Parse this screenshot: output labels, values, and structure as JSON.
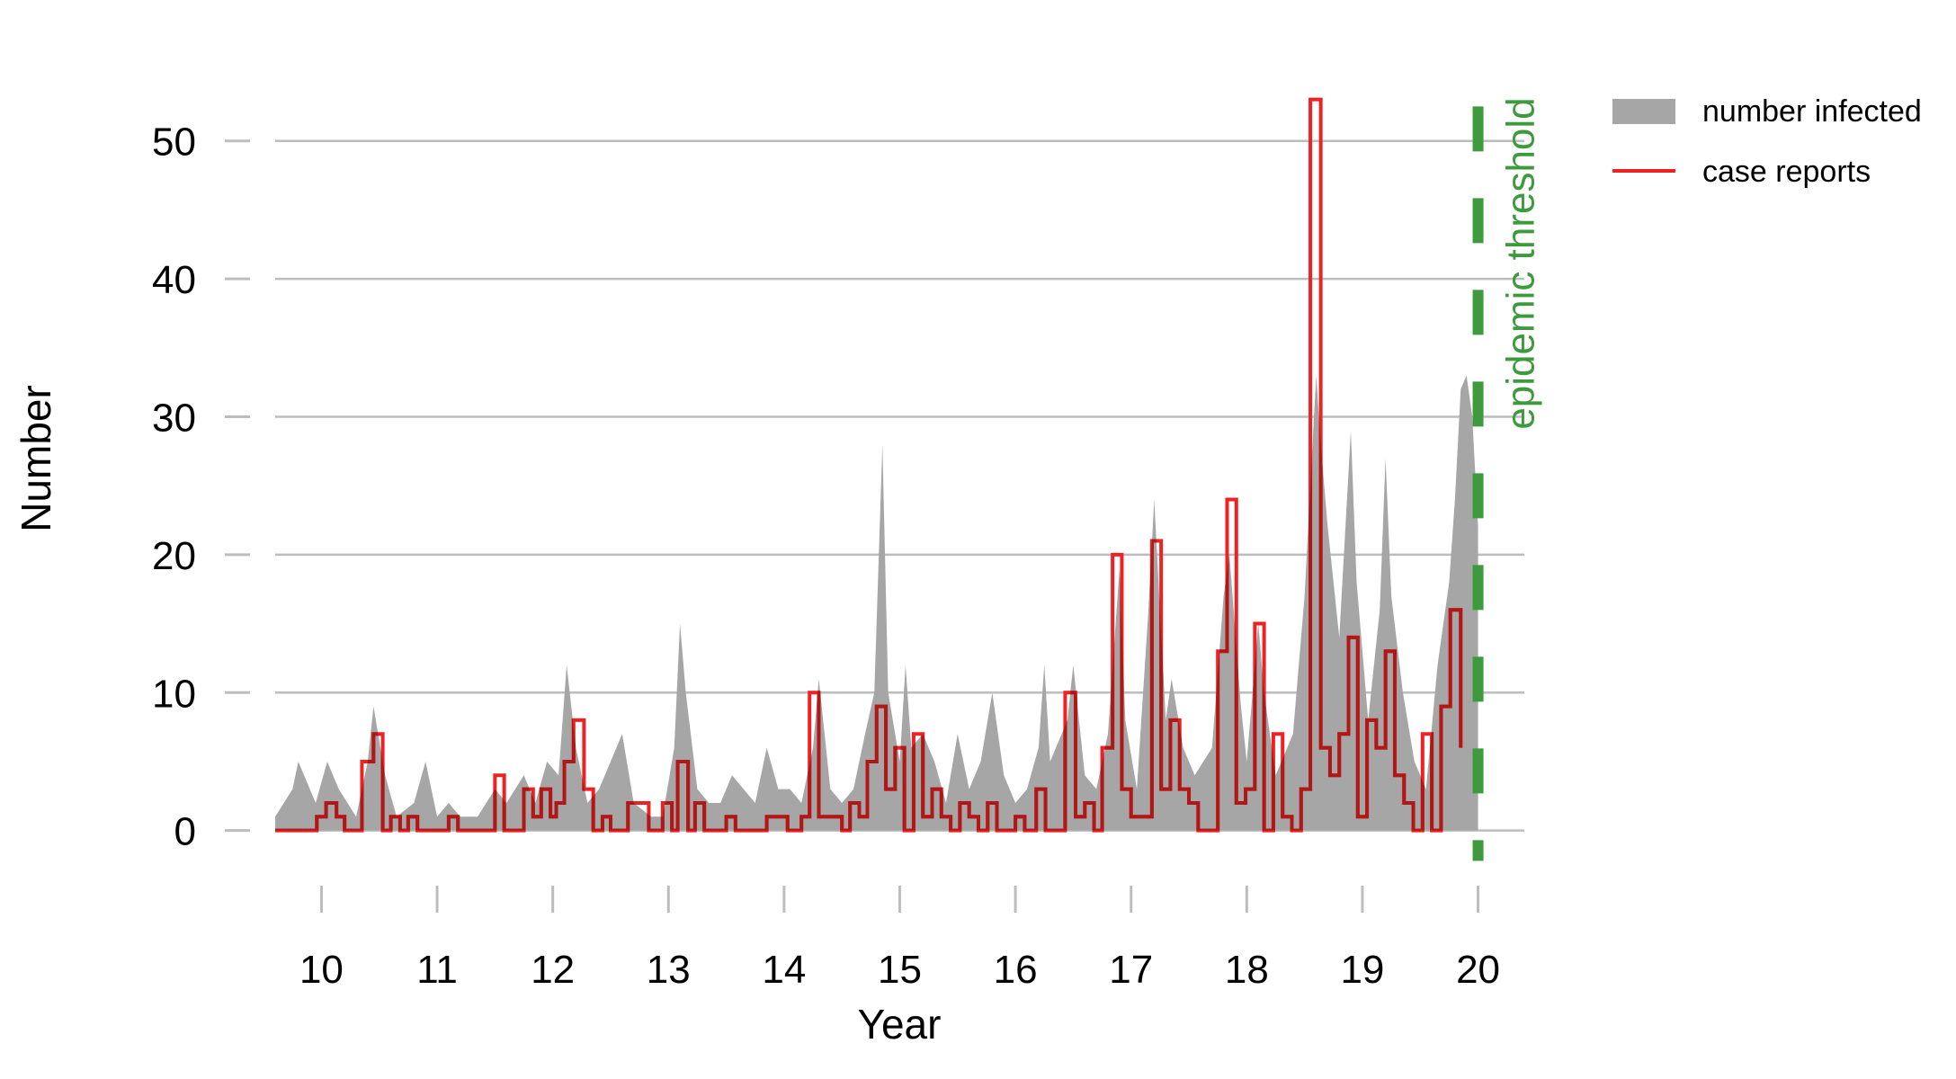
{
  "chart_data": {
    "type": "area",
    "title": "",
    "xlabel": "Year",
    "ylabel": "Number",
    "xlim": [
      9.6,
      20.4
    ],
    "ylim": [
      -4,
      55
    ],
    "x_ticks": [
      10,
      11,
      12,
      13,
      14,
      15,
      16,
      17,
      18,
      19,
      20
    ],
    "x_tick_labels": [
      "10",
      "11",
      "12",
      "13",
      "14",
      "15",
      "16",
      "17",
      "18",
      "19",
      "20"
    ],
    "y_ticks": [
      0,
      10,
      20,
      30,
      40,
      50
    ],
    "y_tick_labels": [
      "0",
      "10",
      "20",
      "30",
      "40",
      "50"
    ],
    "grid": "horizontal",
    "legend_position": "top-right",
    "colors": {
      "infected": "#a6a6a6",
      "reports": "#ee2222",
      "reports_overlap": "#b01818",
      "threshold": "#3d9a3d",
      "grid": "#bdbdbd"
    },
    "legend": [
      {
        "key": "infected",
        "label": "number infected"
      },
      {
        "key": "reports",
        "label": "case reports"
      }
    ],
    "threshold": {
      "x": 20,
      "label": "epidemic threshold"
    },
    "series": [
      {
        "name": "number infected",
        "type": "area",
        "points": [
          [
            9.6,
            1
          ],
          [
            9.75,
            3
          ],
          [
            9.8,
            5
          ],
          [
            9.95,
            2
          ],
          [
            10.05,
            5
          ],
          [
            10.15,
            3
          ],
          [
            10.3,
            1
          ],
          [
            10.4,
            5
          ],
          [
            10.45,
            9
          ],
          [
            10.55,
            4
          ],
          [
            10.65,
            1
          ],
          [
            10.8,
            2
          ],
          [
            10.9,
            5
          ],
          [
            11.0,
            1
          ],
          [
            11.1,
            2
          ],
          [
            11.2,
            1
          ],
          [
            11.35,
            1
          ],
          [
            11.5,
            3
          ],
          [
            11.6,
            2
          ],
          [
            11.75,
            4
          ],
          [
            11.85,
            2
          ],
          [
            11.95,
            5
          ],
          [
            12.05,
            4
          ],
          [
            12.12,
            12
          ],
          [
            12.2,
            6
          ],
          [
            12.3,
            2
          ],
          [
            12.4,
            3
          ],
          [
            12.5,
            5
          ],
          [
            12.6,
            7
          ],
          [
            12.7,
            2
          ],
          [
            12.85,
            1
          ],
          [
            12.95,
            1
          ],
          [
            13.05,
            6
          ],
          [
            13.1,
            15
          ],
          [
            13.15,
            10
          ],
          [
            13.25,
            3
          ],
          [
            13.35,
            2
          ],
          [
            13.45,
            2
          ],
          [
            13.55,
            4
          ],
          [
            13.65,
            3
          ],
          [
            13.75,
            2
          ],
          [
            13.85,
            6
          ],
          [
            13.95,
            3
          ],
          [
            14.05,
            3
          ],
          [
            14.15,
            2
          ],
          [
            14.25,
            6
          ],
          [
            14.3,
            11
          ],
          [
            14.4,
            3
          ],
          [
            14.5,
            2
          ],
          [
            14.6,
            3
          ],
          [
            14.7,
            7
          ],
          [
            14.78,
            10
          ],
          [
            14.85,
            28
          ],
          [
            14.9,
            10
          ],
          [
            15.0,
            5
          ],
          [
            15.05,
            12
          ],
          [
            15.1,
            6
          ],
          [
            15.2,
            7
          ],
          [
            15.3,
            5
          ],
          [
            15.4,
            2
          ],
          [
            15.5,
            7
          ],
          [
            15.6,
            3
          ],
          [
            15.7,
            5
          ],
          [
            15.8,
            10
          ],
          [
            15.9,
            4
          ],
          [
            16.0,
            2
          ],
          [
            16.1,
            3
          ],
          [
            16.2,
            6
          ],
          [
            16.25,
            12
          ],
          [
            16.3,
            5
          ],
          [
            16.45,
            8
          ],
          [
            16.5,
            12
          ],
          [
            16.6,
            4
          ],
          [
            16.7,
            3
          ],
          [
            16.8,
            7
          ],
          [
            16.9,
            19
          ],
          [
            16.95,
            8
          ],
          [
            17.05,
            3
          ],
          [
            17.15,
            16
          ],
          [
            17.2,
            24
          ],
          [
            17.3,
            8
          ],
          [
            17.35,
            11
          ],
          [
            17.45,
            6
          ],
          [
            17.55,
            4
          ],
          [
            17.7,
            6
          ],
          [
            17.8,
            17
          ],
          [
            17.85,
            20
          ],
          [
            17.95,
            9
          ],
          [
            18.0,
            5
          ],
          [
            18.1,
            15
          ],
          [
            18.15,
            10
          ],
          [
            18.25,
            4
          ],
          [
            18.4,
            7
          ],
          [
            18.5,
            17
          ],
          [
            18.55,
            25
          ],
          [
            18.6,
            33
          ],
          [
            18.65,
            27
          ],
          [
            18.7,
            22
          ],
          [
            18.8,
            14
          ],
          [
            18.9,
            29
          ],
          [
            18.95,
            18
          ],
          [
            19.05,
            8
          ],
          [
            19.15,
            16
          ],
          [
            19.2,
            27
          ],
          [
            19.25,
            17
          ],
          [
            19.35,
            10
          ],
          [
            19.45,
            5
          ],
          [
            19.55,
            3
          ],
          [
            19.65,
            12
          ],
          [
            19.75,
            18
          ],
          [
            19.8,
            24
          ],
          [
            19.85,
            32
          ],
          [
            19.9,
            33
          ],
          [
            19.95,
            30
          ],
          [
            20.0,
            22
          ]
        ]
      },
      {
        "name": "case reports",
        "type": "step",
        "steps": [
          [
            9.6,
            0
          ],
          [
            9.96,
            1
          ],
          [
            10.04,
            2
          ],
          [
            10.13,
            1
          ],
          [
            10.2,
            0
          ],
          [
            10.35,
            5
          ],
          [
            10.45,
            7
          ],
          [
            10.53,
            0
          ],
          [
            10.6,
            1
          ],
          [
            10.68,
            0
          ],
          [
            10.75,
            1
          ],
          [
            10.83,
            0
          ],
          [
            11.1,
            1
          ],
          [
            11.18,
            0
          ],
          [
            11.5,
            4
          ],
          [
            11.58,
            0
          ],
          [
            11.75,
            3
          ],
          [
            11.83,
            1
          ],
          [
            11.9,
            3
          ],
          [
            11.98,
            1
          ],
          [
            12.03,
            2
          ],
          [
            12.1,
            5
          ],
          [
            12.18,
            8
          ],
          [
            12.27,
            3
          ],
          [
            12.35,
            0
          ],
          [
            12.43,
            1
          ],
          [
            12.5,
            0
          ],
          [
            12.65,
            2
          ],
          [
            12.83,
            0
          ],
          [
            12.95,
            2
          ],
          [
            13.03,
            0
          ],
          [
            13.08,
            5
          ],
          [
            13.17,
            0
          ],
          [
            13.23,
            2
          ],
          [
            13.31,
            0
          ],
          [
            13.5,
            1
          ],
          [
            13.58,
            0
          ],
          [
            13.85,
            1
          ],
          [
            14.03,
            0
          ],
          [
            14.15,
            1
          ],
          [
            14.22,
            10
          ],
          [
            14.3,
            1
          ],
          [
            14.5,
            0
          ],
          [
            14.57,
            2
          ],
          [
            14.65,
            1
          ],
          [
            14.72,
            5
          ],
          [
            14.8,
            9
          ],
          [
            14.88,
            3
          ],
          [
            14.96,
            6
          ],
          [
            15.04,
            0
          ],
          [
            15.12,
            7
          ],
          [
            15.2,
            1
          ],
          [
            15.28,
            3
          ],
          [
            15.36,
            1
          ],
          [
            15.44,
            0
          ],
          [
            15.52,
            2
          ],
          [
            15.6,
            1
          ],
          [
            15.68,
            0
          ],
          [
            15.76,
            2
          ],
          [
            15.84,
            0
          ],
          [
            16.0,
            1
          ],
          [
            16.08,
            0
          ],
          [
            16.18,
            3
          ],
          [
            16.26,
            0
          ],
          [
            16.43,
            10
          ],
          [
            16.52,
            1
          ],
          [
            16.6,
            2
          ],
          [
            16.68,
            0
          ],
          [
            16.75,
            6
          ],
          [
            16.84,
            20
          ],
          [
            16.92,
            3
          ],
          [
            17.0,
            1
          ],
          [
            17.18,
            21
          ],
          [
            17.26,
            3
          ],
          [
            17.34,
            8
          ],
          [
            17.42,
            3
          ],
          [
            17.5,
            2
          ],
          [
            17.58,
            0
          ],
          [
            17.75,
            13
          ],
          [
            17.83,
            24
          ],
          [
            17.91,
            2
          ],
          [
            17.99,
            3
          ],
          [
            18.07,
            15
          ],
          [
            18.15,
            0
          ],
          [
            18.23,
            7
          ],
          [
            18.31,
            1
          ],
          [
            18.39,
            0
          ],
          [
            18.47,
            3
          ],
          [
            18.55,
            53
          ],
          [
            18.64,
            6
          ],
          [
            18.72,
            4
          ],
          [
            18.8,
            7
          ],
          [
            18.88,
            14
          ],
          [
            18.96,
            1
          ],
          [
            19.04,
            8
          ],
          [
            19.12,
            6
          ],
          [
            19.2,
            13
          ],
          [
            19.28,
            4
          ],
          [
            19.36,
            2
          ],
          [
            19.44,
            0
          ],
          [
            19.52,
            7
          ],
          [
            19.6,
            0
          ],
          [
            19.68,
            9
          ],
          [
            19.76,
            16
          ],
          [
            19.85,
            6
          ]
        ]
      }
    ]
  }
}
